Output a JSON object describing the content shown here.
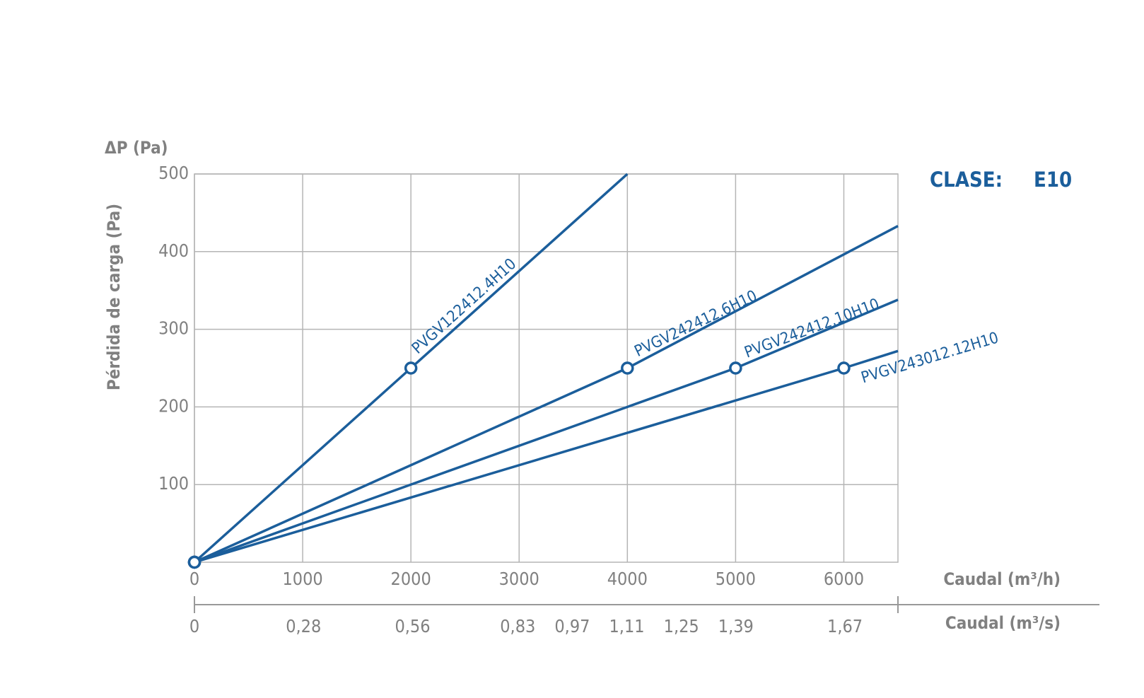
{
  "chart_data": {
    "type": "line",
    "y_axis_symbol": "ΔP (Pa)",
    "y_axis_label": "Pérdida de carga (Pa)",
    "x_axis_label": "Caudal (m³/h)",
    "x2_axis_label": "Caudal (m³/s)",
    "clase_label": "CLASE:",
    "clase_value": "E10",
    "xlim": [
      0,
      6500
    ],
    "ylim": [
      0,
      500
    ],
    "xticks": [
      0,
      1000,
      2000,
      3000,
      4000,
      5000,
      6000
    ],
    "yticks": [
      100,
      200,
      300,
      400,
      500
    ],
    "x2lim": [
      0,
      1.806
    ],
    "x2ticks": [
      0,
      {
        "value": 0.28,
        "label": "0,28"
      },
      {
        "value": 0.56,
        "label": "0,56"
      },
      {
        "value": 0.83,
        "label": "0,83"
      },
      {
        "value": 0.97,
        "label": "0,97"
      },
      {
        "value": 1.11,
        "label": "1,11"
      },
      {
        "value": 1.25,
        "label": "1,25"
      },
      {
        "value": 1.39,
        "label": "1,39"
      },
      {
        "value": 1.67,
        "label": "1,67"
      }
    ],
    "grid": true,
    "series": [
      {
        "name": "PVGV122412.4H10",
        "color": "#1b5e9b",
        "x": [
          0,
          2000,
          4000
        ],
        "values": [
          0,
          250,
          500
        ],
        "markers": [
          true,
          true,
          false
        ]
      },
      {
        "name": "PVGV242412.6H10",
        "color": "#1b5e9b",
        "x": [
          0,
          4000,
          6500
        ],
        "values": [
          0,
          250,
          433
        ],
        "markers": [
          true,
          true,
          false
        ]
      },
      {
        "name": "PVGV242412.10H10",
        "color": "#1b5e9b",
        "x": [
          0,
          5000,
          6500
        ],
        "values": [
          0,
          250,
          338
        ],
        "markers": [
          true,
          true,
          false
        ]
      },
      {
        "name": "PVGV243012.12H10",
        "color": "#1b5e9b",
        "x": [
          0,
          6000,
          6500
        ],
        "values": [
          0,
          250,
          272
        ],
        "markers": [
          true,
          true,
          false
        ]
      }
    ]
  }
}
